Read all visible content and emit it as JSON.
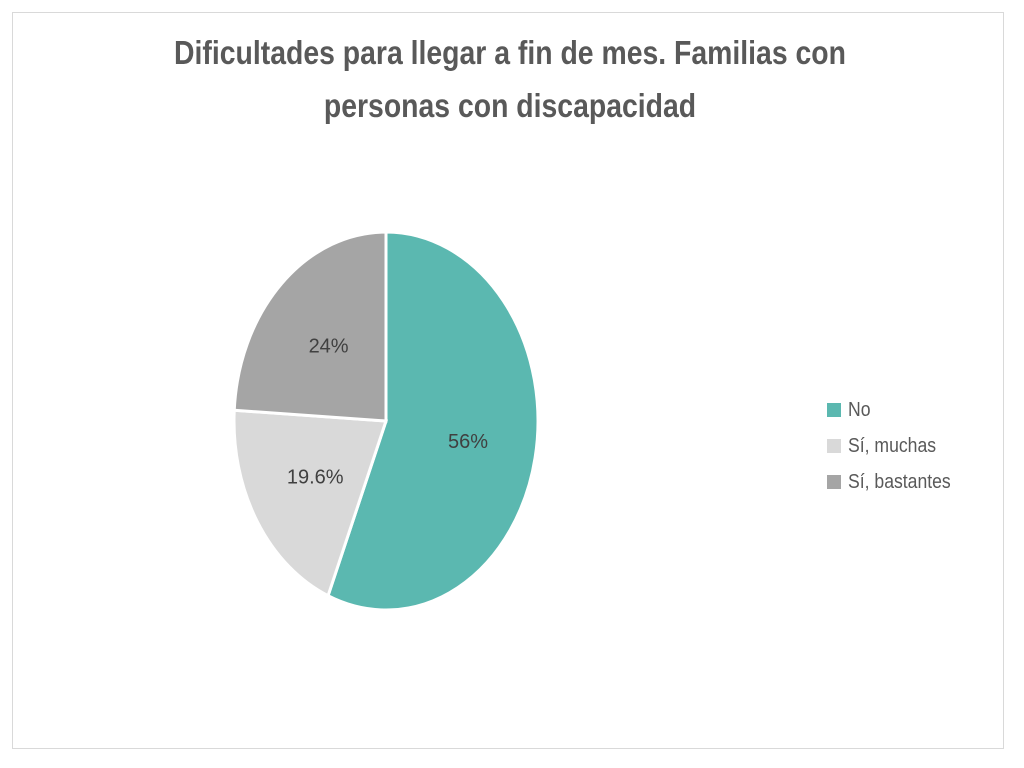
{
  "chart_data": {
    "type": "pie",
    "title": "Dificultades para llegar a fin de mes. Familias con personas con discapacidad",
    "title_lines": [
      "Dificultades para llegar a fin de mes. Familias con",
      "personas con discapacidad"
    ],
    "categories": [
      "No",
      "Sí, muchas",
      "Sí, bastantes"
    ],
    "values": [
      56,
      19.6,
      24
    ],
    "data_labels": [
      "56%",
      "19.6%",
      "24%"
    ],
    "colors": [
      "#5BB8B0",
      "#D9D9D9",
      "#A5A5A5"
    ],
    "legend_position": "right",
    "start_angle": "top, clockwise"
  }
}
